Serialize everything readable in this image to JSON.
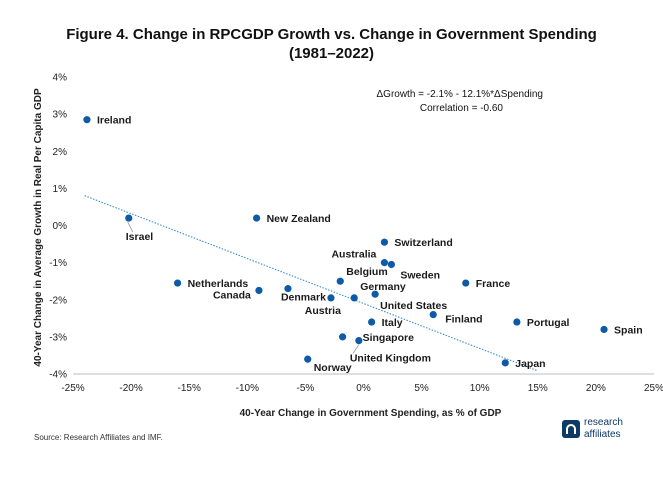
{
  "figure": {
    "title_line1": "Figure 4. Change in RPCGDP Growth vs. Change in Government Spending",
    "title_line2": "(1981–2022)",
    "source": "Source: Research Affiliates and IMF.",
    "logo_line1": "research",
    "logo_line2": "affiliates"
  },
  "chart_data": {
    "type": "scatter",
    "xlabel": "40-Year Change in Government Spending, as % of GDP",
    "ylabel": "40-Year Change in Average Growth in Real Per Capita GDP",
    "xlim": [
      -25,
      25
    ],
    "ylim": [
      -4,
      4
    ],
    "x_ticks": [
      -25,
      -20,
      -15,
      -10,
      -5,
      0,
      5,
      10,
      15,
      20,
      25
    ],
    "x_tick_labels": [
      "-25%",
      "-20%",
      "-15%",
      "-10%",
      "-5%",
      "0%",
      "5%",
      "10%",
      "15%",
      "20%",
      "25%"
    ],
    "y_ticks": [
      -4,
      -3,
      -2,
      -1,
      0,
      1,
      2,
      3,
      4
    ],
    "y_tick_labels": [
      "-4%",
      "-3%",
      "-2%",
      "-1%",
      "0%",
      "1%",
      "2%",
      "3%",
      "4%"
    ],
    "annotation_line1": "ΔGrowth = -2.1% - 12.1%*ΔSpending",
    "annotation_line2": "Correlation = -0.60",
    "trendline": {
      "intercept": -2.1,
      "slope": -12.1,
      "x_range": [
        -24,
        15
      ]
    },
    "grid": false,
    "colors": {
      "point": "#0e5aa7",
      "trend": "#3a8fd1",
      "leader": "#9a9a9a"
    },
    "points": [
      {
        "name": "Ireland",
        "x": -23.8,
        "y": 2.85
      },
      {
        "name": "Israel",
        "x": -20.2,
        "y": 0.2
      },
      {
        "name": "New Zealand",
        "x": -9.2,
        "y": 0.2
      },
      {
        "name": "Netherlands",
        "x": -16.0,
        "y": -1.55
      },
      {
        "name": "Canada",
        "x": -9.0,
        "y": -1.75
      },
      {
        "name": "Denmark",
        "x": -6.5,
        "y": -1.7
      },
      {
        "name": "Belgium",
        "x": -2.0,
        "y": -1.5
      },
      {
        "name": "Austria",
        "x": -2.8,
        "y": -1.95
      },
      {
        "name": "Germany",
        "x": -0.8,
        "y": -1.95
      },
      {
        "name": "United States",
        "x": 1.0,
        "y": -1.85
      },
      {
        "name": "Australia",
        "x": 1.8,
        "y": -1.0
      },
      {
        "name": "Switzerland",
        "x": 1.8,
        "y": -0.45
      },
      {
        "name": "Sweden",
        "x": 2.4,
        "y": -1.05
      },
      {
        "name": "France",
        "x": 8.8,
        "y": -1.55
      },
      {
        "name": "Finland",
        "x": 6.0,
        "y": -2.4
      },
      {
        "name": "Italy",
        "x": 0.7,
        "y": -2.6
      },
      {
        "name": "Singapore",
        "x": -1.8,
        "y": -3.0
      },
      {
        "name": "United Kingdom",
        "x": -0.4,
        "y": -3.1
      },
      {
        "name": "Norway",
        "x": -4.8,
        "y": -3.6
      },
      {
        "name": "Portugal",
        "x": 13.2,
        "y": -2.6
      },
      {
        "name": "Spain",
        "x": 20.7,
        "y": -2.8
      },
      {
        "name": "Japan",
        "x": 12.2,
        "y": -3.7
      }
    ]
  }
}
